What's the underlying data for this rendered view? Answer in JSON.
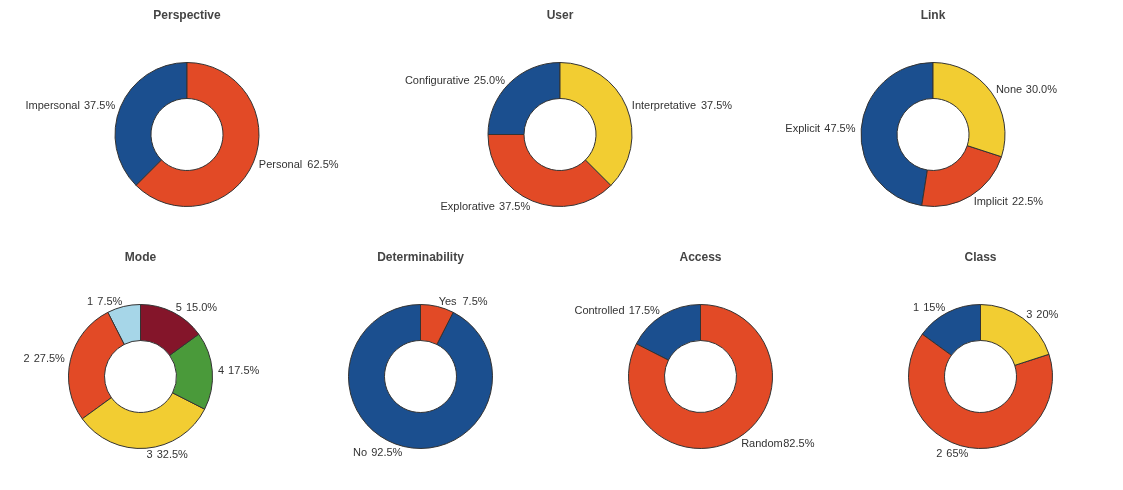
{
  "chart_data": [
    {
      "type": "donut",
      "title": "Perspective",
      "categories": [
        "Impersonal",
        "Personal"
      ],
      "values": [
        37.5,
        62.5
      ],
      "colors": [
        "#1b4f8f",
        "#e24a26"
      ],
      "value_labels": [
        "37.5%",
        "62.5%"
      ]
    },
    {
      "type": "donut",
      "title": "User",
      "categories": [
        "Configurative",
        "Explorative",
        "Interpretative"
      ],
      "values": [
        25.0,
        37.5,
        37.5
      ],
      "colors": [
        "#1b4f8f",
        "#e24a26",
        "#f2cd32"
      ],
      "value_labels": [
        "25.0%",
        "37.5%",
        "37.5%"
      ]
    },
    {
      "type": "donut",
      "title": "Link",
      "categories": [
        "Explicit",
        "Implicit",
        "None"
      ],
      "values": [
        47.5,
        22.5,
        30.0
      ],
      "colors": [
        "#1b4f8f",
        "#e24a26",
        "#f2cd32"
      ],
      "value_labels": [
        "47.5%",
        "22.5%",
        "30.0%"
      ]
    },
    {
      "type": "donut",
      "title": "Mode",
      "categories": [
        "1",
        "2",
        "3",
        "4",
        "5"
      ],
      "values": [
        7.5,
        27.5,
        32.5,
        17.5,
        15.0
      ],
      "colors": [
        "#a6d6e8",
        "#e24a26",
        "#f2cd32",
        "#4a9a3a",
        "#84152a"
      ],
      "value_labels": [
        "7.5%",
        "27.5%",
        "32.5%",
        "17.5%",
        "15.0%"
      ]
    },
    {
      "type": "donut",
      "title": "Determinability",
      "categories": [
        "No",
        "Yes"
      ],
      "values": [
        92.5,
        7.5
      ],
      "colors": [
        "#1b4f8f",
        "#e24a26"
      ],
      "value_labels": [
        "92.5%",
        "7.5%"
      ]
    },
    {
      "type": "donut",
      "title": "Access",
      "categories": [
        "Controlled",
        "Random"
      ],
      "values": [
        17.5,
        82.5
      ],
      "colors": [
        "#1b4f8f",
        "#e24a26"
      ],
      "value_labels": [
        "17.5%",
        "82.5%"
      ]
    },
    {
      "type": "donut",
      "title": "Class",
      "categories": [
        "1",
        "2",
        "3"
      ],
      "values": [
        15,
        65,
        20
      ],
      "colors": [
        "#1b4f8f",
        "#e24a26",
        "#f2cd32"
      ],
      "value_labels": [
        "15%",
        "65%",
        "20%"
      ]
    }
  ]
}
